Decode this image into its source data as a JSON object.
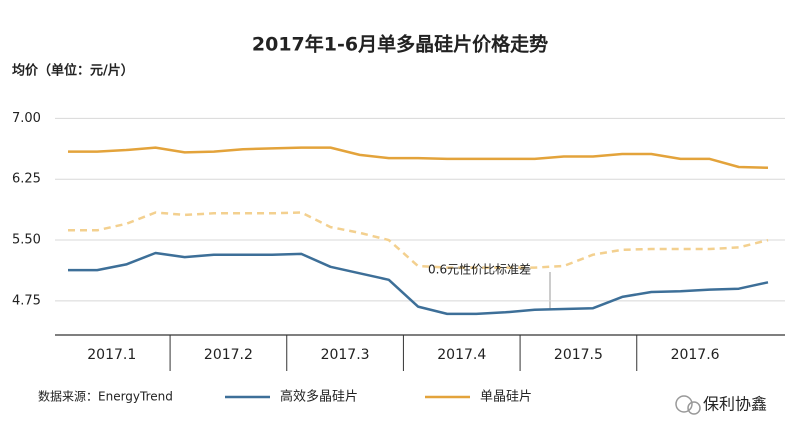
{
  "chart_data": {
    "type": "line",
    "title": "2017年1-6月单多晶硅片价格走势",
    "y_label": "均价（单位：元/片）",
    "source": "数据来源：EnergyTrend",
    "watermark": "保利协鑫",
    "annotation": "0.6元性价比标准差",
    "categories": [
      null,
      "2017.1",
      null,
      null,
      null,
      "2017.2",
      null,
      null,
      null,
      "2017.3",
      null,
      null,
      null,
      "2017.4",
      null,
      null,
      null,
      "2017.5",
      null,
      null,
      null,
      "2017.6",
      null,
      null,
      null
    ],
    "series": [
      {
        "name": "高效多晶硅片",
        "color": "#3d6f98",
        "values": [
          5.13,
          5.13,
          5.2,
          5.34,
          5.29,
          5.32,
          5.32,
          5.32,
          5.33,
          5.17,
          5.09,
          5.01,
          4.68,
          4.59,
          4.59,
          4.61,
          4.64,
          4.65,
          4.66,
          4.8,
          4.86,
          4.87,
          4.89,
          4.9,
          4.98
        ]
      },
      {
        "name": "单晶硅片",
        "color": "#e3a33b",
        "values": [
          6.59,
          6.59,
          6.61,
          6.64,
          6.58,
          6.59,
          6.62,
          6.63,
          6.64,
          6.64,
          6.55,
          6.51,
          6.51,
          6.5,
          6.5,
          6.5,
          6.5,
          6.53,
          6.53,
          6.56,
          6.56,
          6.5,
          6.5,
          6.4,
          6.39
        ]
      },
      {
        "color": "#f3d08f",
        "dashed": true,
        "values": [
          5.62,
          5.62,
          5.7,
          5.84,
          5.81,
          5.83,
          5.83,
          5.83,
          5.84,
          5.66,
          5.59,
          5.5,
          5.18,
          5.16,
          5.16,
          5.16,
          5.16,
          5.18,
          5.32,
          5.38,
          5.39,
          5.39,
          5.39,
          5.41,
          5.5
        ]
      }
    ],
    "ylim": [
      4.33,
      7.3
    ],
    "yticks": [
      {
        "value": 7,
        "label": "7.00"
      },
      {
        "value": 6.25,
        "label": "6.25"
      },
      {
        "value": 5.5,
        "label": "5.50"
      },
      {
        "value": 4.75,
        "label": "4.75"
      }
    ],
    "grid": true
  }
}
